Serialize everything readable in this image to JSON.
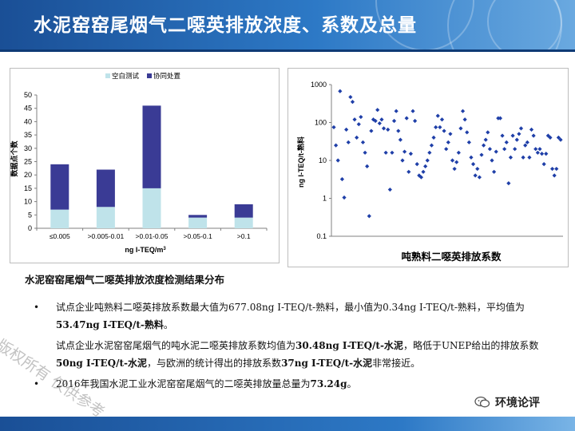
{
  "title": "水泥窑窑尾烟气二噁英排放浓度、系数及总量",
  "colors": {
    "blank_test": "#bfe3ea",
    "co_processing": "#3a3b95",
    "scatter": "#1f3fa8",
    "header": "#2d79c6"
  },
  "chart_data": [
    {
      "type": "bar",
      "stacked": true,
      "categories": [
        "≤0.005",
        ">0.005-0.01",
        ">0.01-0.05",
        ">0.05-0.1",
        ">0.1"
      ],
      "series": [
        {
          "name": "空白测试",
          "values": [
            7,
            8,
            15,
            4,
            4
          ]
        },
        {
          "name": "协同处置",
          "values": [
            17,
            14,
            31,
            1,
            5
          ]
        }
      ],
      "xlabel": "ng I-TEQ/m³",
      "ylabel": "数据点个数",
      "ylim": [
        0,
        50
      ],
      "yticks": [
        "0",
        "5",
        "10",
        "15",
        "20",
        "25",
        "30",
        "35",
        "40",
        "45",
        "50"
      ],
      "legend": "top-center",
      "grid": false
    },
    {
      "type": "scatter",
      "ylabel": "ng I-TEQ/t-熟料",
      "xlabel": "",
      "yscale": "log",
      "ylim": [
        0.1,
        1000
      ],
      "yticks": [
        "0.1",
        "1",
        "10",
        "100",
        "1000"
      ],
      "title_below": "吨熟料二噁英排放系数",
      "grid": false,
      "y": [
        75,
        25,
        10,
        670,
        3.2,
        1.05,
        65,
        30,
        470,
        350,
        120,
        40,
        90,
        140,
        30,
        16,
        7,
        0.34,
        60,
        120,
        110,
        215,
        95,
        120,
        70,
        16,
        65,
        1.7,
        16,
        110,
        200,
        60,
        35,
        10,
        17,
        130,
        5,
        15,
        200,
        110,
        8,
        4,
        3.6,
        5,
        7,
        10,
        16,
        25,
        40,
        75,
        150,
        75,
        120,
        60,
        20,
        30,
        50,
        10,
        6,
        9,
        16,
        70,
        200,
        120,
        55,
        30,
        12,
        8,
        4,
        6,
        3.6,
        14,
        25,
        35,
        55,
        20,
        10,
        5,
        17,
        130,
        130,
        45,
        20,
        30,
        2.5,
        12,
        45,
        20,
        35,
        50,
        70,
        12,
        25,
        30,
        12,
        65,
        45,
        20,
        16,
        20,
        15,
        8,
        15,
        45,
        40,
        6,
        4,
        6,
        40,
        35
      ]
    }
  ],
  "caption": "水泥窑窑尾烟气二噁英排放浓度检测结果分布",
  "bullets": [
    {
      "dot": "•",
      "pre": "试点企业吨熟料二噁英排放系数最大值为677.08ng I-TEQ/t-熟料，最小值为0.34ng I-TEQ/t-熟料，平均值为",
      "bold": "53.47ng I-TEQ/t-熟料",
      "post": "。"
    },
    {
      "dot": "",
      "pre": "试点企业水泥窑窑尾烟气的吨水泥二噁英排放系数均值为",
      "bold": "30.48ng I-TEQ/t-水泥",
      "mid": "，略低于UNEP给出的排放系数",
      "bold2": "50ng I-TEQ/t-水泥",
      "mid2": "，与欧洲的统计得出的排放系数",
      "bold3": "37ng I-TEQ/t-水泥",
      "post": "非常接近。"
    },
    {
      "dot": "•",
      "pre": "2016年我国水泥工业水泥窑窑尾烟气的二噁英排放量总量为",
      "bold": "73.24g",
      "post": "。"
    }
  ],
  "watermark": "版权所有 仅供参考",
  "brand": "环境论评",
  "brand_icon": "wechat-icon"
}
